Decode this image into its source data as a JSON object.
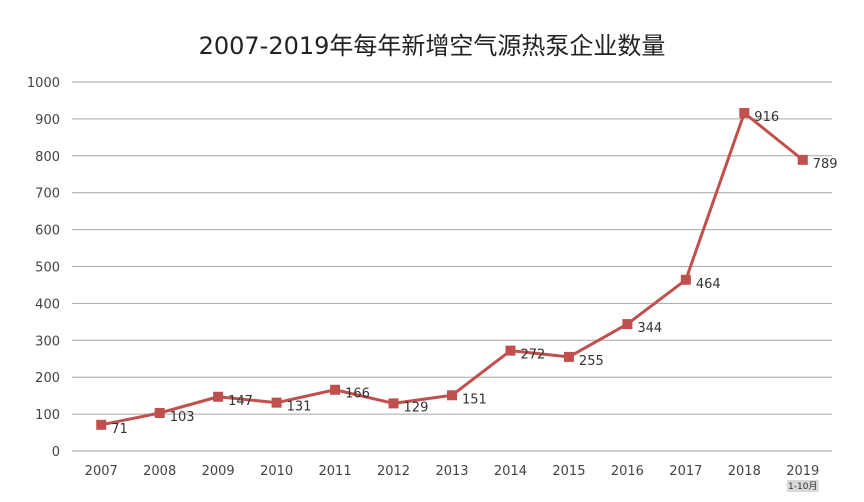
{
  "chart_data": {
    "type": "line",
    "title": "2007-2019年每年新增空气源热泵企业数量",
    "categories": [
      "2007",
      "2008",
      "2009",
      "2010",
      "2011",
      "2012",
      "2013",
      "2014",
      "2015",
      "2016",
      "2017",
      "2018",
      "2019"
    ],
    "category_note": {
      "2019": "1-10月"
    },
    "series": [
      {
        "name": "新增企业数量",
        "values": [
          71,
          103,
          147,
          131,
          166,
          129,
          151,
          272,
          255,
          344,
          464,
          916,
          789
        ],
        "color": "#c0504d"
      }
    ],
    "ylim": [
      0,
      1000
    ],
    "yticks": [
      0,
      100,
      200,
      300,
      400,
      500,
      600,
      700,
      800,
      900,
      1000
    ],
    "grid": true,
    "xlabel": "",
    "ylabel": "",
    "legend": "none"
  }
}
